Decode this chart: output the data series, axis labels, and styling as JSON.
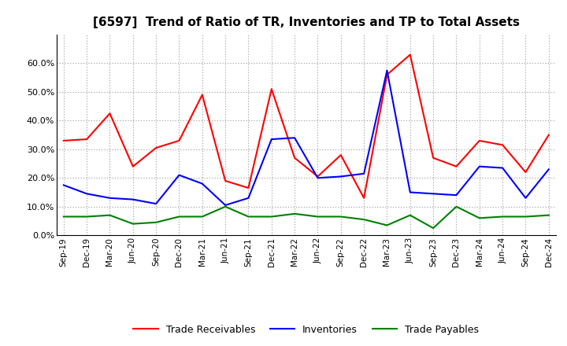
{
  "title": "[6597]  Trend of Ratio of TR, Inventories and TP to Total Assets",
  "x_labels": [
    "Sep-19",
    "Dec-19",
    "Mar-20",
    "Jun-20",
    "Sep-20",
    "Dec-20",
    "Mar-21",
    "Jun-21",
    "Sep-21",
    "Dec-21",
    "Mar-22",
    "Jun-22",
    "Sep-22",
    "Dec-22",
    "Mar-23",
    "Jun-23",
    "Sep-23",
    "Dec-23",
    "Mar-24",
    "Jun-24",
    "Sep-24",
    "Dec-24"
  ],
  "trade_receivables": [
    33.0,
    33.5,
    42.5,
    24.0,
    30.5,
    33.0,
    49.0,
    19.0,
    16.5,
    51.0,
    27.0,
    20.5,
    28.0,
    13.0,
    56.0,
    63.0,
    27.0,
    24.0,
    33.0,
    31.5,
    22.0,
    35.0
  ],
  "inventories": [
    17.5,
    14.5,
    13.0,
    12.5,
    11.0,
    21.0,
    18.0,
    10.5,
    13.0,
    33.5,
    34.0,
    20.0,
    20.5,
    21.5,
    57.5,
    15.0,
    14.5,
    14.0,
    24.0,
    23.5,
    13.0,
    23.0
  ],
  "trade_payables": [
    6.5,
    6.5,
    7.0,
    4.0,
    4.5,
    6.5,
    6.5,
    10.0,
    6.5,
    6.5,
    7.5,
    6.5,
    6.5,
    5.5,
    3.5,
    7.0,
    2.5,
    10.0,
    6.0,
    6.5,
    6.5,
    7.0
  ],
  "tr_color": "#ff0000",
  "inv_color": "#0000ff",
  "tp_color": "#008000",
  "ylim": [
    0,
    70
  ],
  "yticks": [
    0,
    10,
    20,
    30,
    40,
    50,
    60
  ],
  "background_color": "#ffffff",
  "grid_color": "#aaaaaa"
}
